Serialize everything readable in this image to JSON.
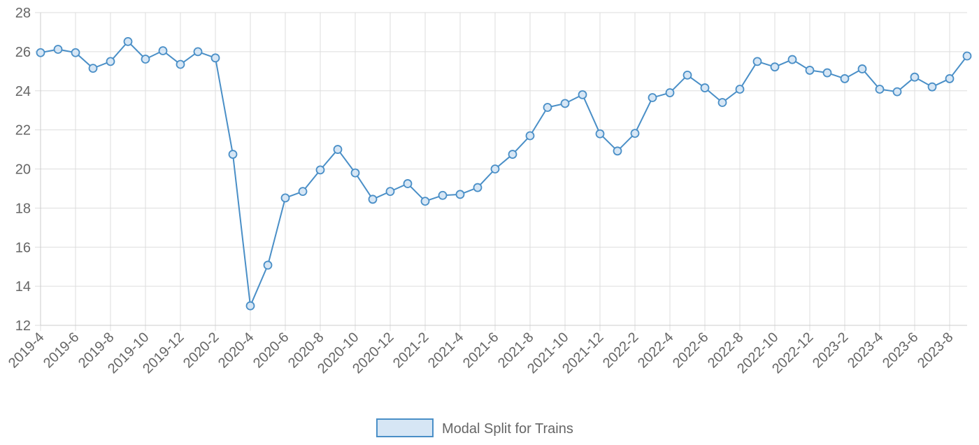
{
  "chart_data": {
    "type": "line",
    "x": [
      "2019-4",
      "2019-5",
      "2019-6",
      "2019-7",
      "2019-8",
      "2019-9",
      "2019-10",
      "2019-11",
      "2019-12",
      "2020-1",
      "2020-2",
      "2020-3",
      "2020-4",
      "2020-5",
      "2020-6",
      "2020-7",
      "2020-8",
      "2020-9",
      "2020-10",
      "2020-11",
      "2020-12",
      "2021-1",
      "2021-2",
      "2021-3",
      "2021-4",
      "2021-5",
      "2021-6",
      "2021-7",
      "2021-8",
      "2021-9",
      "2021-10",
      "2021-11",
      "2021-12",
      "2022-1",
      "2022-2",
      "2022-3",
      "2022-4",
      "2022-5",
      "2022-6",
      "2022-7",
      "2022-8",
      "2022-9",
      "2022-10",
      "2022-11",
      "2022-12",
      "2023-1",
      "2023-2",
      "2023-3",
      "2023-4",
      "2023-5",
      "2023-6",
      "2023-7",
      "2023-8",
      "2023-9"
    ],
    "x_tick_labels": [
      "2019-4",
      "2019-6",
      "2019-8",
      "2019-10",
      "2019-12",
      "2020-2",
      "2020-4",
      "2020-6",
      "2020-8",
      "2020-10",
      "2020-12",
      "2021-2",
      "2021-4",
      "2021-6",
      "2021-8",
      "2021-10",
      "2021-12",
      "2022-2",
      "2022-4",
      "2022-6",
      "2022-8",
      "2022-10",
      "2022-12",
      "2023-2",
      "2023-4",
      "2023-6",
      "2023-8"
    ],
    "series": [
      {
        "name": "Modal Split for Trains",
        "color": "#4a8fc7",
        "fill_color": "#d6e6f5",
        "values": [
          25.95,
          26.12,
          25.95,
          25.15,
          25.5,
          26.52,
          25.62,
          26.05,
          25.35,
          26.0,
          25.68,
          20.75,
          13.0,
          15.08,
          18.52,
          18.85,
          19.95,
          21.0,
          19.8,
          18.45,
          18.85,
          19.25,
          18.35,
          18.65,
          18.7,
          19.05,
          20.0,
          20.75,
          21.7,
          23.15,
          23.35,
          23.8,
          21.8,
          20.92,
          21.82,
          23.65,
          23.9,
          24.8,
          24.15,
          23.4,
          24.08,
          25.5,
          25.22,
          25.6,
          25.05,
          24.92,
          24.62,
          25.12,
          24.08,
          23.95,
          24.7,
          24.2,
          24.62,
          25.78
        ]
      }
    ],
    "ylim": [
      12,
      28
    ],
    "y_ticks": [
      12,
      14,
      16,
      18,
      20,
      22,
      24,
      26,
      28
    ],
    "grid": true,
    "legend_position": "bottom"
  }
}
